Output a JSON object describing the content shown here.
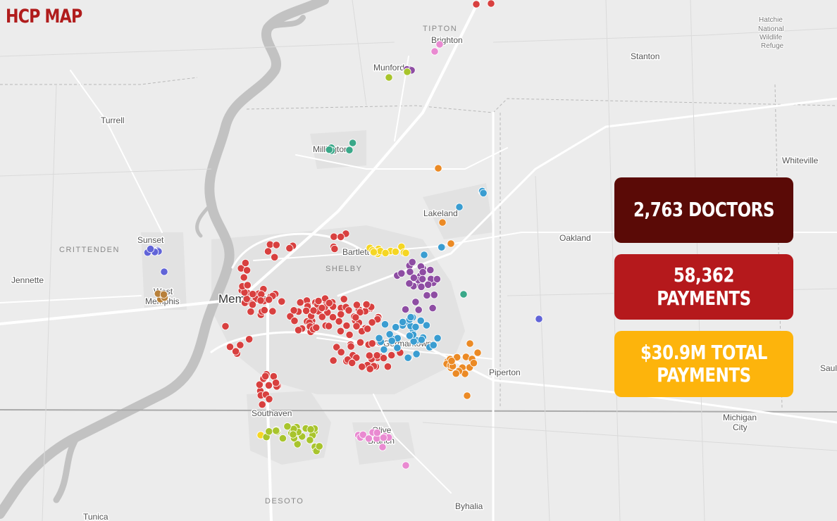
{
  "title": "HCP MAP",
  "stats": {
    "doctors": "2,763 DOCTORS",
    "payments": "58,362 PAYMENTS",
    "total": "$30.9M TOTAL PAYMENTS"
  },
  "colors": {
    "title": "#b01c1c",
    "doctors_bg": "#5a0a06",
    "payments_bg": "#b5191c",
    "total_bg": "#fdb40c"
  },
  "place_labels": {
    "memphis": "Memphis",
    "west_memphis_1": "West",
    "west_memphis_2": "Memphis",
    "turrell": "Turrell",
    "sunset": "Sunset",
    "jennette": "Jennette",
    "brighton": "Brighton",
    "munford": "Munford",
    "millington": "Millington",
    "lakeland": "Lakeland",
    "bartlett": "Bartlett",
    "germantown": "Germantown",
    "piperton": "Piperton",
    "southaven": "Southaven",
    "olive_branch_1": "Olive",
    "olive_branch_2": "Branch",
    "byhalia": "Byhalia",
    "tunica": "Tunica",
    "stanton": "Stanton",
    "oakland": "Oakland",
    "whiteville": "Whiteville",
    "michigan_city_1": "Michigan",
    "michigan_city_2": "City",
    "saul": "Saul",
    "hatchie_1": "Hatchie",
    "hatchie_2": "National",
    "hatchie_3": "Wildlife",
    "hatchie_4": "Refuge"
  },
  "county_labels": {
    "tipton": "TIPTON",
    "crittenden": "CRITTENDEN",
    "shelby": "SHELBY",
    "desoto": "DESOTO"
  },
  "marker_colors": {
    "red": "#d8403f",
    "purple": "#8e4da3",
    "blue": "#3a9dd1",
    "orange": "#eb8a25",
    "yellow": "#f5d623",
    "green": "#a8c42c",
    "pink": "#e98ad1",
    "teal": "#3aa889",
    "indigo": "#6164d8",
    "brown": "#b8803a"
  }
}
